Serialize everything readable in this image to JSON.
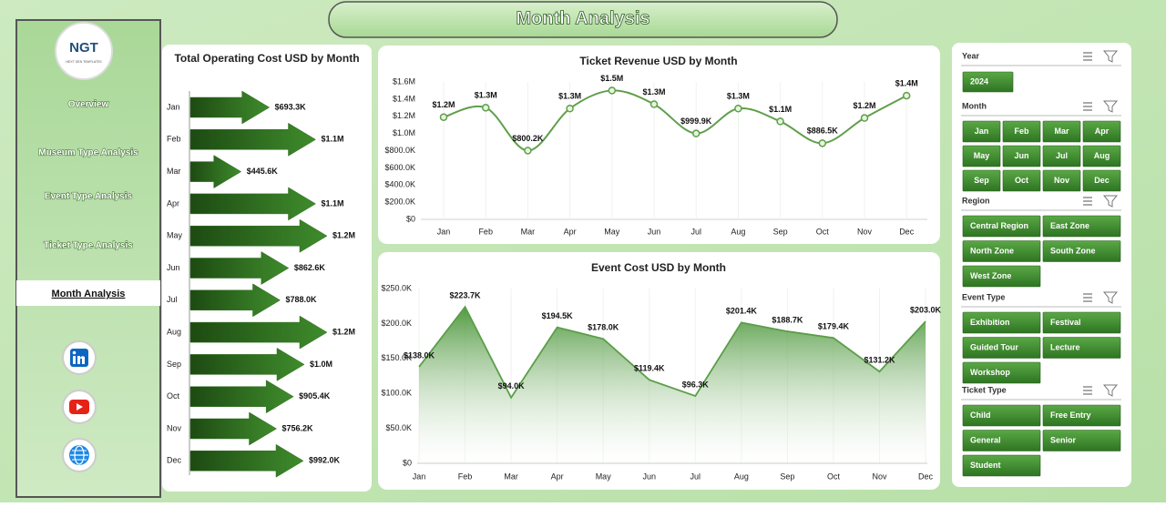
{
  "header": {
    "title": "Month Analysis"
  },
  "logo": {
    "text": "NGT",
    "subtitle": "NEXT GEN TEMPLATES"
  },
  "sidebar": {
    "nav": [
      "Overview",
      "Museum Type Analysis",
      "Event Type Analysis",
      "Ticket Type Analysis",
      "Month Analysis"
    ]
  },
  "chart_data": [
    {
      "type": "bar",
      "horizontal": true,
      "title": "Total Operating Cost USD by Month",
      "color": "#2f6e21",
      "categories": [
        "Jan",
        "Feb",
        "Mar",
        "Apr",
        "May",
        "Jun",
        "Jul",
        "Aug",
        "Sep",
        "Oct",
        "Nov",
        "Dec"
      ],
      "values": [
        693300,
        1100000,
        445600,
        1100000,
        1200000,
        862600,
        788000,
        1200000,
        1000000,
        905400,
        756200,
        992000
      ],
      "value_labels": [
        "$693.3K",
        "$1.1M",
        "$445.6K",
        "$1.1M",
        "$1.2M",
        "$862.6K",
        "$788.0K",
        "$1.2M",
        "$1.0M",
        "$905.4K",
        "$756.2K",
        "$992.0K"
      ]
    },
    {
      "type": "line",
      "title": "Ticket Revenue USD by Month",
      "color": "#5f9f4a",
      "grid": true,
      "categories": [
        "Jan",
        "Feb",
        "Mar",
        "Apr",
        "May",
        "Jun",
        "Jul",
        "Aug",
        "Sep",
        "Oct",
        "Nov",
        "Dec"
      ],
      "values": [
        1190000,
        1300000,
        800200,
        1290000,
        1500000,
        1340000,
        999900,
        1290000,
        1140000,
        886500,
        1180000,
        1440000
      ],
      "value_labels": [
        "$1.2M",
        "$1.3M",
        "$800.2K",
        "$1.3M",
        "$1.5M",
        "$1.3M",
        "$999.9K",
        "$1.3M",
        "$1.1M",
        "$886.5K",
        "$1.2M",
        "$1.4M"
      ],
      "ylim": [
        0,
        1600000
      ],
      "yticks": [
        {
          "value": 0,
          "label": "$0"
        },
        {
          "value": 200000,
          "label": "$200.0K"
        },
        {
          "value": 400000,
          "label": "$400.0K"
        },
        {
          "value": 600000,
          "label": "$600.0K"
        },
        {
          "value": 800000,
          "label": "$800.0K"
        },
        {
          "value": 1000000,
          "label": "$1.0M"
        },
        {
          "value": 1200000,
          "label": "$1.2M"
        },
        {
          "value": 1400000,
          "label": "$1.4M"
        },
        {
          "value": 1600000,
          "label": "$1.6M"
        }
      ]
    },
    {
      "type": "area",
      "title": "Event Cost USD by Month",
      "color": "#5a9e48",
      "grid": true,
      "categories": [
        "Jan",
        "Feb",
        "Mar",
        "Apr",
        "May",
        "Jun",
        "Jul",
        "Aug",
        "Sep",
        "Oct",
        "Nov",
        "Dec"
      ],
      "values": [
        138000,
        223700,
        94000,
        194500,
        178000,
        119400,
        96300,
        201400,
        188700,
        179400,
        131200,
        203000
      ],
      "value_labels": [
        "$138.0K",
        "$223.7K",
        "$94.0K",
        "$194.5K",
        "$178.0K",
        "$119.4K",
        "$96.3K",
        "$201.4K",
        "$188.7K",
        "$179.4K",
        "$131.2K",
        "$203.0K"
      ],
      "ylim": [
        0,
        250000
      ],
      "yticks": [
        {
          "value": 0,
          "label": "$0"
        },
        {
          "value": 50000,
          "label": "$50.0K"
        },
        {
          "value": 100000,
          "label": "$100.0K"
        },
        {
          "value": 150000,
          "label": "$150.0K"
        },
        {
          "value": 200000,
          "label": "$200.0K"
        },
        {
          "value": 250000,
          "label": "$250.0K"
        }
      ]
    }
  ],
  "slicers": [
    {
      "title": "Year",
      "items": [
        "2024"
      ]
    },
    {
      "title": "Month",
      "items": [
        "Jan",
        "Feb",
        "Mar",
        "Apr",
        "May",
        "Jun",
        "Jul",
        "Aug",
        "Sep",
        "Oct",
        "Nov",
        "Dec"
      ]
    },
    {
      "title": "Region",
      "items": [
        "Central Region",
        "East Zone",
        "North Zone",
        "South Zone",
        "West Zone"
      ]
    },
    {
      "title": "Event Type",
      "items": [
        "Exhibition",
        "Festival",
        "Guided Tour",
        "Lecture",
        "Workshop"
      ]
    },
    {
      "title": "Ticket Type",
      "items": [
        "Child",
        "Free Entry",
        "General",
        "Senior",
        "Student"
      ]
    }
  ]
}
